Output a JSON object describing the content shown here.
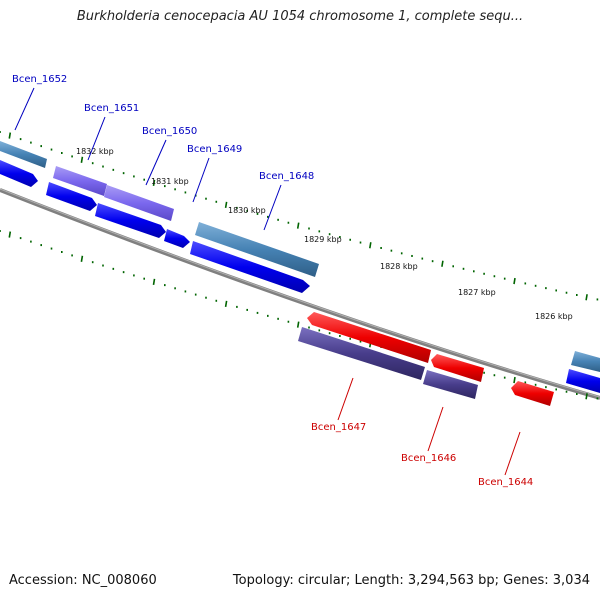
{
  "title": "Burkholderia cenocepacia AU 1054 chromosome 1, complete sequ...",
  "footer": {
    "accession": "Accession: NC_008060",
    "info": "Topology: circular; Length: 3,294,563 bp; Genes: 3,034"
  },
  "colors": {
    "forward_label": "#0000c0",
    "reverse_label": "#cc0000",
    "forward_cds": "#0000ee",
    "forward_gene_steel": "#4682b4",
    "forward_gene_purple": "#7b68ee",
    "reverse_cds": "#ee0000",
    "reverse_gene_darkslate": "#483d8b",
    "backbone": "#808080",
    "tick": "#006400"
  },
  "ticks": [
    {
      "label": "1832 kbp"
    },
    {
      "label": "1831 kbp"
    },
    {
      "label": "1830 kbp"
    },
    {
      "label": "1829 kbp"
    },
    {
      "label": "1828 kbp"
    },
    {
      "label": "1827 kbp"
    },
    {
      "label": "1826 kbp"
    }
  ],
  "genes": [
    {
      "name": "Bcen_1652",
      "strand": "forward"
    },
    {
      "name": "Bcen_1651",
      "strand": "forward"
    },
    {
      "name": "Bcen_1650",
      "strand": "forward"
    },
    {
      "name": "Bcen_1649",
      "strand": "forward"
    },
    {
      "name": "Bcen_1648",
      "strand": "forward"
    },
    {
      "name": "Bcen_1647",
      "strand": "reverse"
    },
    {
      "name": "Bcen_1646",
      "strand": "reverse"
    },
    {
      "name": "Bcen_1644",
      "strand": "reverse"
    }
  ]
}
